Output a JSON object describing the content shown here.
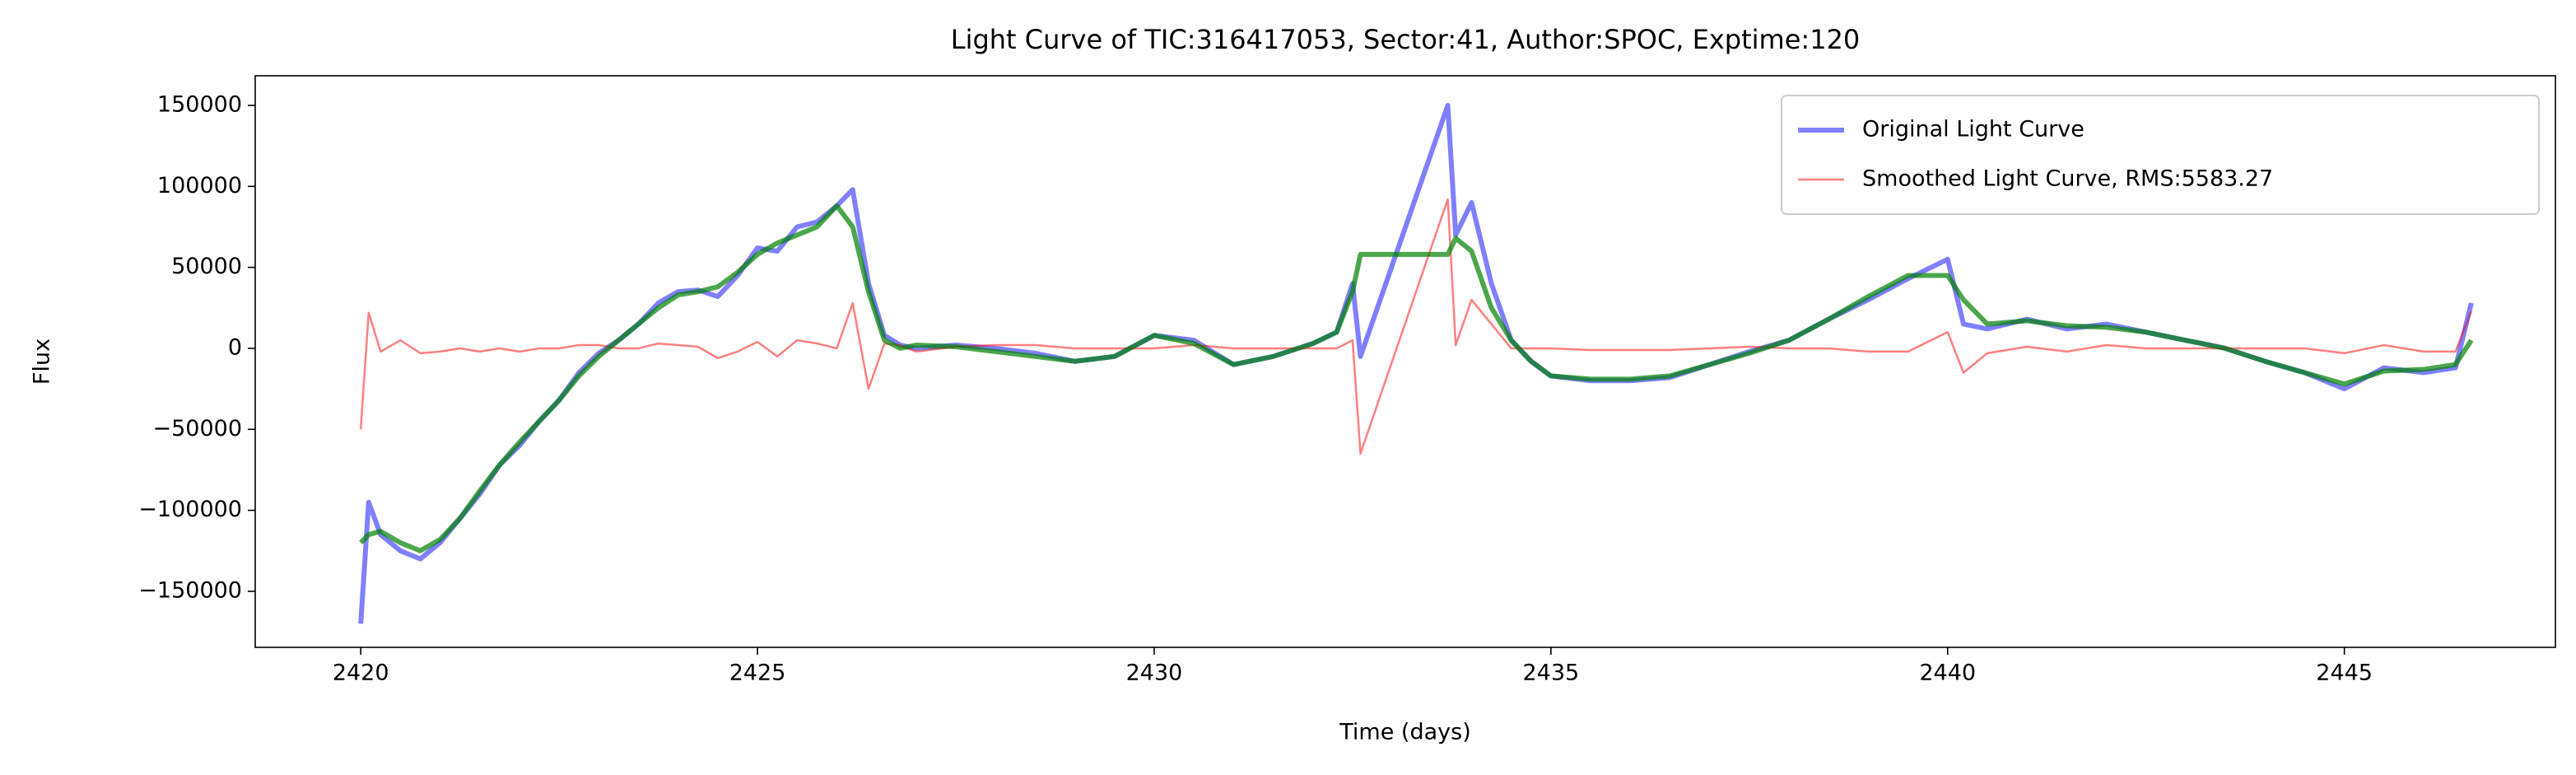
{
  "chart_data": {
    "type": "line",
    "title": "Light Curve of TIC:316417053, Sector:41, Author:SPOC, Exptime:120",
    "xlabel": "Time (days)",
    "ylabel": "Flux",
    "x": [
      2420,
      2420.1,
      2420.25,
      2420.5,
      2420.75,
      2421,
      2421.25,
      2421.5,
      2421.75,
      2422,
      2422.25,
      2422.5,
      2422.75,
      2423,
      2423.25,
      2423.5,
      2423.75,
      2424,
      2424.25,
      2424.5,
      2424.75,
      2425,
      2425.25,
      2425.5,
      2425.75,
      2426,
      2426.2,
      2426.4,
      2426.6,
      2426.8,
      2427,
      2427.5,
      2428,
      2428.5,
      2429,
      2429.5,
      2430,
      2430.5,
      2431,
      2431.5,
      2432,
      2432.3,
      2432.5,
      2432.6,
      2433.7,
      2433.8,
      2434,
      2434.25,
      2434.5,
      2434.75,
      2435,
      2435.5,
      2436,
      2436.5,
      2437,
      2437.5,
      2438,
      2438.5,
      2439,
      2439.5,
      2440,
      2440.2,
      2440.5,
      2441,
      2441.5,
      2442,
      2442.5,
      2443,
      2443.5,
      2444,
      2444.5,
      2445,
      2445.5,
      2446,
      2446.4,
      2446.6
    ],
    "series": [
      {
        "name": "Original Light Curve",
        "color": "#0000ff",
        "opacity": 0.5,
        "width": 6,
        "values": [
          -170000,
          -95000,
          -115000,
          -125000,
          -130000,
          -120000,
          -105000,
          -90000,
          -72000,
          -60000,
          -45000,
          -32000,
          -15000,
          -3000,
          5000,
          15000,
          28000,
          35000,
          36000,
          32000,
          45000,
          62000,
          60000,
          75000,
          78000,
          88000,
          98000,
          40000,
          8000,
          2000,
          0,
          2000,
          0,
          -3000,
          -8000,
          -5000,
          8000,
          5000,
          -10000,
          -5000,
          3000,
          10000,
          40000,
          -5000,
          150000,
          70000,
          90000,
          40000,
          5000,
          -8000,
          -17000,
          -20000,
          -20000,
          -18000,
          -10000,
          -2000,
          5000,
          18000,
          30000,
          43000,
          55000,
          15000,
          12000,
          18000,
          12000,
          15000,
          10000,
          5000,
          0,
          -8000,
          -15000,
          -25000,
          -12000,
          -15000,
          -12000,
          28000
        ]
      },
      {
        "name": "Smoothed Light Curve, RMS:5583.27",
        "color": "#ff0000",
        "opacity": 0.5,
        "width": 2.5,
        "values": [
          -50000,
          22000,
          -2000,
          5000,
          -3000,
          -2000,
          0,
          -2000,
          0,
          -2000,
          0,
          0,
          2000,
          2000,
          0,
          0,
          3000,
          2000,
          1000,
          -6000,
          -2000,
          4000,
          -5000,
          5000,
          3000,
          0,
          28000,
          -25000,
          3000,
          2000,
          -2000,
          1000,
          2000,
          2000,
          0,
          0,
          0,
          2000,
          0,
          0,
          0,
          0,
          5000,
          -65000,
          92000,
          2000,
          30000,
          15000,
          0,
          0,
          0,
          -1000,
          -1000,
          -1000,
          0,
          1000,
          0,
          0,
          -2000,
          -2000,
          10000,
          -15000,
          -3000,
          1000,
          -2000,
          2000,
          0,
          0,
          0,
          0,
          0,
          -3000,
          2000,
          -2000,
          -2000,
          23000
        ]
      },
      {
        "color": "#008000",
        "opacity": 0.7,
        "width": 6,
        "values": [
          -120000,
          -115000,
          -113000,
          -120000,
          -125000,
          -118000,
          -105000,
          -88000,
          -72000,
          -58000,
          -45000,
          -32000,
          -17000,
          -5000,
          5000,
          15000,
          25000,
          33000,
          35000,
          38000,
          47000,
          58000,
          65000,
          70000,
          75000,
          88000,
          75000,
          35000,
          5000,
          0,
          2000,
          1000,
          -2000,
          -5000,
          -8000,
          -5000,
          8000,
          3000,
          -10000,
          -5000,
          3000,
          10000,
          35000,
          58000,
          58000,
          68000,
          60000,
          25000,
          5000,
          -8000,
          -17000,
          -19000,
          -19000,
          -17000,
          -10000,
          -3000,
          5000,
          18000,
          32000,
          45000,
          45000,
          30000,
          15000,
          17000,
          14000,
          13000,
          10000,
          5000,
          0,
          -8000,
          -15000,
          -22000,
          -14000,
          -13000,
          -10000,
          5000
        ]
      }
    ],
    "xlim": [
      2418.67,
      2447.66
    ],
    "xticks": [
      2420,
      2425,
      2430,
      2435,
      2440,
      2445
    ],
    "ylim": [
      -184600,
      168300
    ],
    "yticks": [
      {
        "value": -150000,
        "label": "−150000"
      },
      {
        "value": -100000,
        "label": "−100000"
      },
      {
        "value": -50000,
        "label": "−50000"
      },
      0,
      50000,
      100000,
      150000
    ],
    "grid": false,
    "legend": "upper right"
  }
}
